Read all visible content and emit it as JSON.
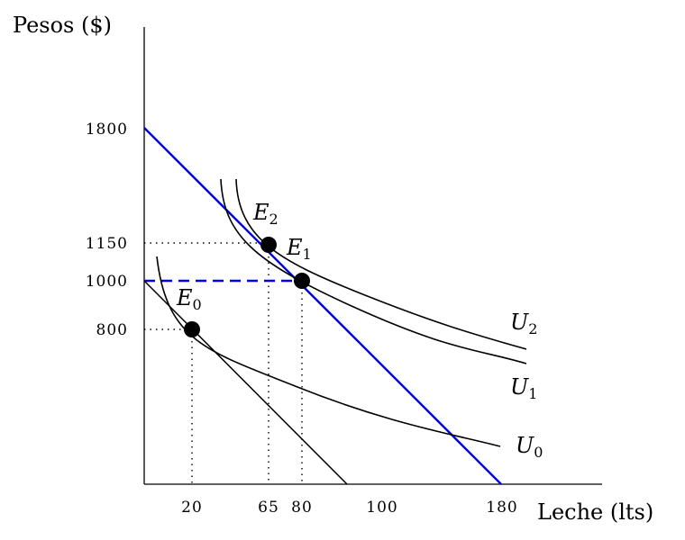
{
  "axes": {
    "y_title": "Pesos ($)",
    "x_title": "Leche (lts)"
  },
  "y_ticks": [
    "1800",
    "1150",
    "1000",
    "800"
  ],
  "x_ticks": [
    "20",
    "65",
    "80",
    "100",
    "180"
  ],
  "points": [
    {
      "letter": "E",
      "sub": "0"
    },
    {
      "letter": "E",
      "sub": "1"
    },
    {
      "letter": "E",
      "sub": "2"
    }
  ],
  "curves": [
    {
      "letter": "U",
      "sub": "0"
    },
    {
      "letter": "U",
      "sub": "1"
    },
    {
      "letter": "U",
      "sub": "2"
    }
  ],
  "colors": {
    "budget_line": "#0000ee",
    "ink": "#000000"
  }
}
